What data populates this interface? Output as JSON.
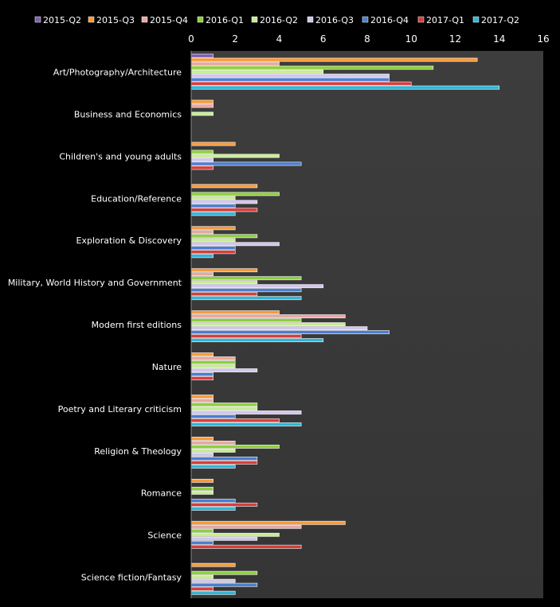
{
  "chart_data": {
    "type": "bar",
    "orientation": "horizontal",
    "title": "",
    "xlabel": "",
    "ylabel": "",
    "xlim": [
      0,
      16
    ],
    "xticks": [
      "0",
      "2",
      "4",
      "6",
      "8",
      "10",
      "12",
      "14",
      "16"
    ],
    "grid": "off",
    "legend_position": "top",
    "categories": [
      "Art/Photography/Architecture",
      "Business and Economics",
      "Children's and young adults",
      "Education/Reference",
      "Exploration & Discovery",
      "Military, World History and Government",
      "Modern first editions",
      "Nature",
      "Poetry and Literary criticism",
      "Religion & Theology",
      "Romance",
      "Science",
      "Science fiction/Fantasy"
    ],
    "series": [
      {
        "name": "2015-Q2",
        "color": "#7b5fb0",
        "values": [
          1,
          0,
          0,
          0,
          0,
          0,
          0,
          0,
          0,
          0,
          0,
          0,
          0
        ]
      },
      {
        "name": "2015-Q3",
        "color": "#f79a3a",
        "values": [
          13,
          1,
          2,
          3,
          2,
          3,
          4,
          1,
          1,
          1,
          1,
          7,
          2
        ]
      },
      {
        "name": "2015-Q4",
        "color": "#e8a8a0",
        "values": [
          4,
          1,
          0,
          0,
          1,
          1,
          7,
          2,
          1,
          2,
          0,
          5,
          0
        ]
      },
      {
        "name": "2016-Q1",
        "color": "#8fcf3f",
        "values": [
          11,
          0,
          1,
          4,
          3,
          5,
          5,
          2,
          3,
          4,
          1,
          1,
          3
        ]
      },
      {
        "name": "2016-Q2",
        "color": "#c8ec96",
        "values": [
          6,
          1,
          4,
          2,
          2,
          3,
          7,
          2,
          3,
          2,
          1,
          4,
          1
        ]
      },
      {
        "name": "2016-Q3",
        "color": "#d2c6ea",
        "values": [
          9,
          0,
          1,
          3,
          4,
          6,
          8,
          3,
          5,
          1,
          0,
          3,
          2
        ]
      },
      {
        "name": "2016-Q4",
        "color": "#4a7fd0",
        "values": [
          9,
          0,
          5,
          2,
          2,
          5,
          9,
          1,
          2,
          3,
          2,
          1,
          3
        ]
      },
      {
        "name": "2017-Q1",
        "color": "#d93c3c",
        "values": [
          10,
          0,
          1,
          3,
          2,
          3,
          5,
          1,
          4,
          3,
          3,
          5,
          1
        ]
      },
      {
        "name": "2017-Q2",
        "color": "#2fb6d6",
        "values": [
          14,
          0,
          0,
          2,
          1,
          5,
          6,
          0,
          5,
          2,
          2,
          0,
          2
        ]
      }
    ]
  }
}
